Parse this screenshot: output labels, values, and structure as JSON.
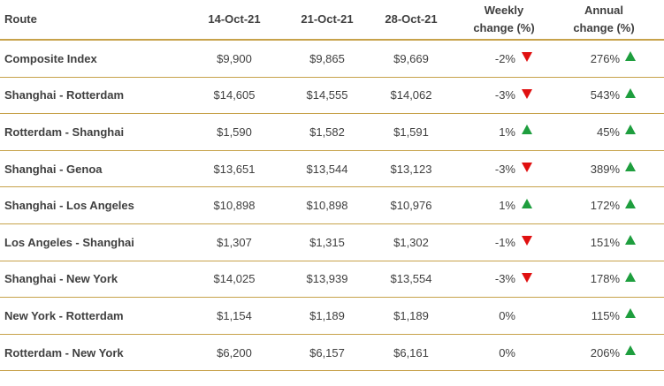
{
  "headers": {
    "route": "Route",
    "date1": "14-Oct-21",
    "date2": "21-Oct-21",
    "date3": "28-Oct-21",
    "weekly_line1": "Weekly",
    "weekly_line2": "change (%)",
    "annual_line1": "Annual",
    "annual_line2": "change (%)"
  },
  "colors": {
    "rule": "#c7a24a",
    "up": "#1e9e3e",
    "down": "#e01010"
  },
  "rows": [
    {
      "route": "Composite Index",
      "d1": "$9,900",
      "d2": "$9,865",
      "d3": "$9,669",
      "weekly": "-2%",
      "weekly_dir": "down",
      "annual": "276%",
      "annual_dir": "up"
    },
    {
      "route": "Shanghai - Rotterdam",
      "d1": "$14,605",
      "d2": "$14,555",
      "d3": "$14,062",
      "weekly": "-3%",
      "weekly_dir": "down",
      "annual": "543%",
      "annual_dir": "up"
    },
    {
      "route": "Rotterdam - Shanghai",
      "d1": "$1,590",
      "d2": "$1,582",
      "d3": "$1,591",
      "weekly": "1%",
      "weekly_dir": "up",
      "annual": "45%",
      "annual_dir": "up"
    },
    {
      "route": "Shanghai - Genoa",
      "d1": "$13,651",
      "d2": "$13,544",
      "d3": "$13,123",
      "weekly": "-3%",
      "weekly_dir": "down",
      "annual": "389%",
      "annual_dir": "up"
    },
    {
      "route": "Shanghai - Los Angeles",
      "d1": "$10,898",
      "d2": "$10,898",
      "d3": "$10,976",
      "weekly": "1%",
      "weekly_dir": "up",
      "annual": "172%",
      "annual_dir": "up"
    },
    {
      "route": "Los Angeles - Shanghai",
      "d1": "$1,307",
      "d2": "$1,315",
      "d3": "$1,302",
      "weekly": "-1%",
      "weekly_dir": "down",
      "annual": "151%",
      "annual_dir": "up"
    },
    {
      "route": "Shanghai - New York",
      "d1": "$14,025",
      "d2": "$13,939",
      "d3": "$13,554",
      "weekly": "-3%",
      "weekly_dir": "down",
      "annual": "178%",
      "annual_dir": "up"
    },
    {
      "route": "New York - Rotterdam",
      "d1": "$1,154",
      "d2": "$1,189",
      "d3": "$1,189",
      "weekly": "0%",
      "weekly_dir": "none",
      "annual": "115%",
      "annual_dir": "up"
    },
    {
      "route": "Rotterdam - New York",
      "d1": "$6,200",
      "d2": "$6,157",
      "d3": "$6,161",
      "weekly": "0%",
      "weekly_dir": "none",
      "annual": "206%",
      "annual_dir": "up"
    }
  ]
}
